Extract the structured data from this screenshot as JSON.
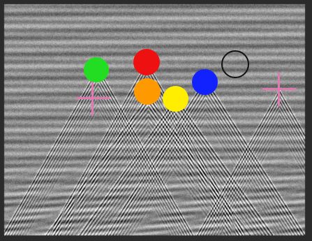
{
  "image": {
    "kind": "GPR radargram with hyperbola markers",
    "background": "#8c8c8c"
  },
  "markers": {
    "green": {
      "color": "#22dd22",
      "style": "filled"
    },
    "red": {
      "color": "#ee1111",
      "style": "filled"
    },
    "orange": {
      "color": "#ff9900",
      "style": "filled"
    },
    "yellow": {
      "color": "#ffee00",
      "style": "filled"
    },
    "blue": {
      "color": "#1122ff",
      "style": "filled"
    },
    "empty": {
      "color": "#111111",
      "style": "outline"
    }
  },
  "crosses": {
    "left": {
      "color": "#e07ab0"
    },
    "right": {
      "color": "#e07ab0"
    }
  }
}
